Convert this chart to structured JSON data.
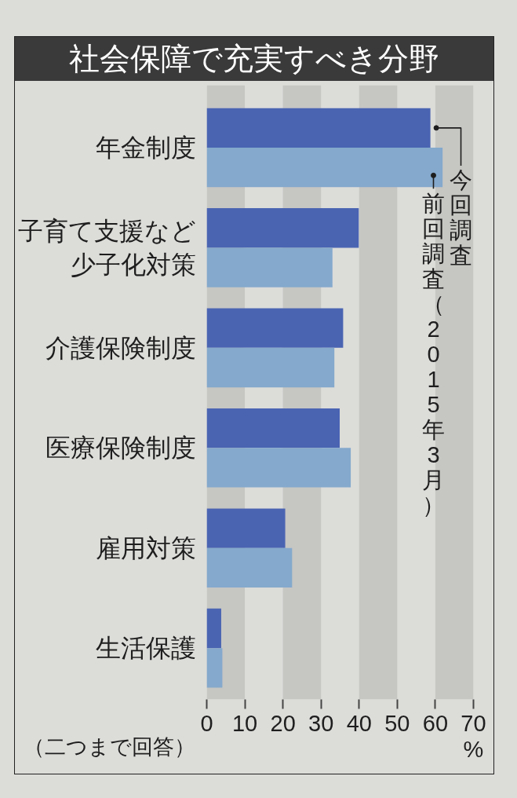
{
  "chart_data": {
    "type": "bar",
    "orientation": "horizontal",
    "title": "社会保障で充実すべき分野",
    "categories": [
      "年金制度",
      "子育て支援など少子化対策",
      "介護保険制度",
      "医療保険制度",
      "雇用対策",
      "生活保護"
    ],
    "series": [
      {
        "name": "今回調査",
        "color": "#4a64b2",
        "values": [
          58.7,
          39.9,
          35.8,
          34.9,
          20.6,
          3.8
        ]
      },
      {
        "name": "前回調査（2015年3月）",
        "color": "#84a9cc",
        "values": [
          61.9,
          33.0,
          33.5,
          37.8,
          22.4,
          4.1
        ]
      }
    ],
    "xlim": [
      0,
      70
    ],
    "xticks": [
      0,
      10,
      20,
      30,
      40,
      50,
      60,
      70
    ],
    "xlabel": "%",
    "bands": [
      {
        "axis": "x",
        "from": 0,
        "to": 10,
        "color": "#c6c6c3"
      },
      {
        "axis": "x",
        "from": 20,
        "to": 30,
        "color": "#c6c6c3"
      },
      {
        "axis": "x",
        "from": 40,
        "to": 50,
        "color": "#c6c6c3"
      },
      {
        "axis": "x",
        "from": 60,
        "to": 70,
        "color": "#c6c6c3"
      }
    ],
    "annotations": [
      "（二つまで回答）"
    ]
  }
}
